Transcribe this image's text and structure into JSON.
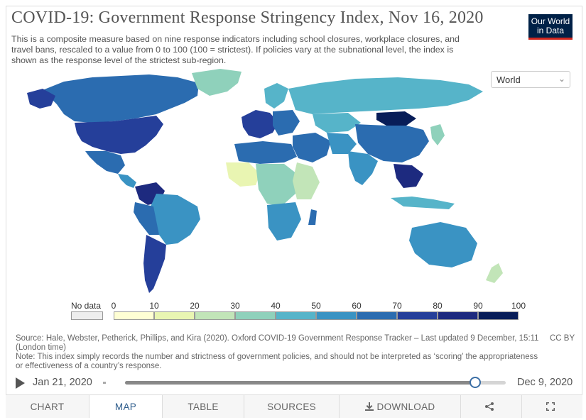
{
  "title": "COVID-19: Government Response Stringency Index, Nov 16, 2020",
  "subtitle": "This is a composite measure based on nine response indicators including school closures, workplace closures, and travel bans, rescaled to a value from 0 to 100 (100 = strictest). If policies vary at the subnational level, the index is shown as the response level of the strictest sub-region.",
  "logo": {
    "line1": "Our World",
    "line2": "in Data",
    "bg": "#002147",
    "accent": "#ce261e"
  },
  "region_selector": {
    "value": "World",
    "icon": "chevron-down-icon"
  },
  "legend": {
    "no_data_label": "No data",
    "no_data_color": "#eeeeee",
    "ticks": [
      "0",
      "10",
      "20",
      "30",
      "40",
      "50",
      "60",
      "70",
      "80",
      "90",
      "100"
    ],
    "colors": [
      "#ffffd4",
      "#e9f5b2",
      "#c2e5b8",
      "#8fd1bb",
      "#56b4c9",
      "#3a93c3",
      "#2b6cb0",
      "#253f9a",
      "#1d2a7f",
      "#081d58"
    ]
  },
  "source_text": "Source: Hale, Webster, Petherick, Phillips, and Kira (2020). Oxford COVID-19 Government Response Tracker – Last updated 9 December, 15:11 (London time)",
  "note_text": "Note: This index simply records the number and strictness of government policies, and should not be interpreted as ‘scoring’ the appropriateness or effectiveness of a country’s response.",
  "license": "CC BY",
  "timeline": {
    "start": "Jan 21, 2020",
    "end": "Dec 9, 2020",
    "position_fraction": 0.92
  },
  "tabs": [
    {
      "label": "CHART",
      "active": false
    },
    {
      "label": "MAP",
      "active": true
    },
    {
      "label": "TABLE",
      "active": false
    },
    {
      "label": "SOURCES",
      "active": false
    },
    {
      "label": "DOWNLOAD",
      "active": false,
      "icon": "download-icon"
    },
    {
      "label": "",
      "active": false,
      "icon": "share-icon"
    },
    {
      "label": "",
      "active": false,
      "icon": "fullscreen-icon"
    }
  ]
}
